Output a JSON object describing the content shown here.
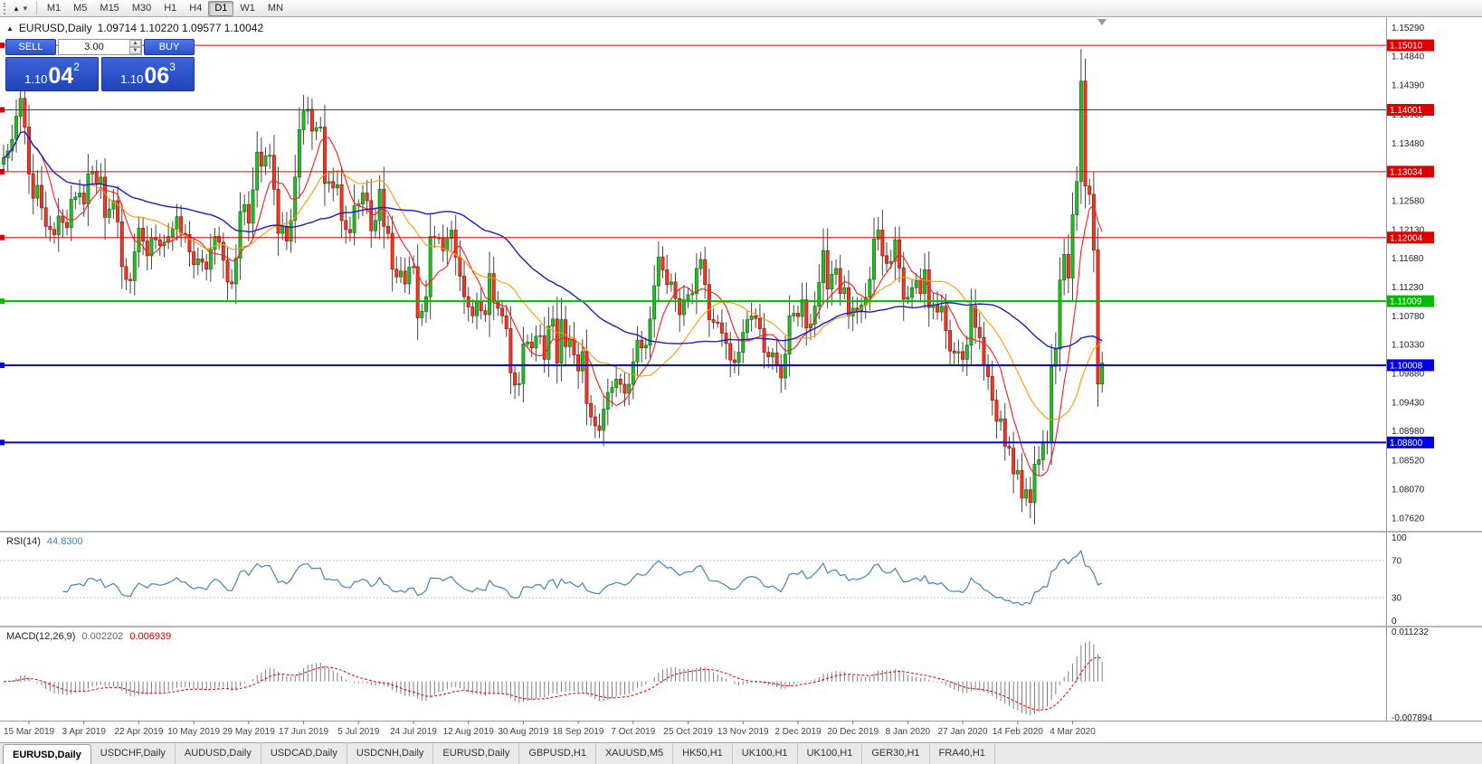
{
  "toolbar": {
    "timeframes": [
      "M1",
      "M5",
      "M15",
      "M30",
      "H1",
      "H4",
      "D1",
      "W1",
      "MN"
    ],
    "active_timeframe": "D1"
  },
  "chart": {
    "symbol": "EURUSD,Daily",
    "ohlc_text": "1.09714 1.10220 1.09577 1.10042"
  },
  "trade_panel": {
    "sell_label": "SELL",
    "buy_label": "BUY",
    "volume": "3.00",
    "sell_price": {
      "prefix": "1.10",
      "big": "04",
      "sup": "2",
      "full": "1.10042"
    },
    "buy_price": {
      "prefix": "1.10",
      "big": "06",
      "sup": "3",
      "full": "1.10063"
    }
  },
  "chart_data": {
    "type": "candlestick",
    "symbol": "EURUSD",
    "period": "Daily",
    "price_range": [
      1.0742,
      1.1545
    ],
    "last_ohlc": {
      "open": 1.09714,
      "high": 1.1022,
      "low": 1.09577,
      "close": 1.10042
    },
    "closes": [
      1.1325,
      1.1336,
      1.1354,
      1.139,
      1.1418,
      1.1373,
      1.13,
      1.1262,
      1.1282,
      1.1247,
      1.1218,
      1.1213,
      1.1205,
      1.1234,
      1.1224,
      1.1216,
      1.126,
      1.1264,
      1.127,
      1.1253,
      1.13,
      1.1304,
      1.1284,
      1.1295,
      1.1232,
      1.1245,
      1.1258,
      1.1225,
      1.1155,
      1.1135,
      1.1133,
      1.1178,
      1.1215,
      1.1195,
      1.1172,
      1.12,
      1.1197,
      1.1188,
      1.1193,
      1.1202,
      1.1214,
      1.1233,
      1.1207,
      1.1205,
      1.1178,
      1.1158,
      1.1167,
      1.1162,
      1.1151,
      1.1182,
      1.1202,
      1.1193,
      1.1165,
      1.1131,
      1.1128,
      1.1168,
      1.1241,
      1.1252,
      1.1223,
      1.1275,
      1.1334,
      1.1312,
      1.1328,
      1.1329,
      1.1276,
      1.1207,
      1.1218,
      1.1195,
      1.1227,
      1.1295,
      1.1369,
      1.1398,
      1.1401,
      1.1367,
      1.1372,
      1.1373,
      1.1285,
      1.1288,
      1.1278,
      1.1283,
      1.1227,
      1.1213,
      1.1208,
      1.125,
      1.1253,
      1.127,
      1.1258,
      1.1211,
      1.1227,
      1.1276,
      1.1218,
      1.1207,
      1.1151,
      1.1139,
      1.1148,
      1.1128,
      1.1154,
      1.1155,
      1.1075,
      1.1085,
      1.1108,
      1.1202,
      1.12,
      1.12,
      1.118,
      1.1199,
      1.1212,
      1.117,
      1.114,
      1.1108,
      1.1092,
      1.1078,
      1.11,
      1.1086,
      1.108,
      1.1144,
      1.11,
      1.109,
      1.1078,
      1.1058,
      1.0989,
      1.097,
      1.0972,
      1.1034,
      1.1037,
      1.1028,
      1.1046,
      1.1047,
      1.101,
      1.1062,
      1.1073,
      1.1004,
      1.1072,
      1.103,
      1.1042,
      1.1017,
      1.0992,
      1.1022,
      1.0941,
      1.092,
      1.0906,
      1.0899,
      1.0932,
      1.0958,
      1.0966,
      1.0979,
      1.0971,
      1.0957,
      1.0971,
      1.1006,
      1.104,
      1.1028,
      1.1032,
      1.1073,
      1.1125,
      1.117,
      1.115,
      1.1127,
      1.1131,
      1.1105,
      1.108,
      1.1103,
      1.1111,
      1.1113,
      1.1152,
      1.1166,
      1.1127,
      1.1072,
      1.1068,
      1.1067,
      1.1051,
      1.1035,
      1.1009,
      1.1005,
      1.1021,
      1.1052,
      1.1072,
      1.1078,
      1.1074,
      1.1058,
      1.1021,
      1.1014,
      1.102,
      1.1001,
      1.0981,
      1.1018,
      1.1078,
      1.1082,
      1.1077,
      1.1103,
      1.1059,
      1.1065,
      1.1093,
      1.113,
      1.118,
      1.112,
      1.1143,
      1.1152,
      1.1113,
      1.1122,
      1.1078,
      1.109,
      1.1086,
      1.1095,
      1.1107,
      1.1135,
      1.1198,
      1.1212,
      1.1172,
      1.116,
      1.1163,
      1.1197,
      1.1153,
      1.1104,
      1.1107,
      1.1122,
      1.1133,
      1.1113,
      1.115,
      1.1091,
      1.1095,
      1.1084,
      1.1093,
      1.1055,
      1.1023,
      1.102,
      1.1022,
      1.101,
      1.1032,
      1.1093,
      1.106,
      1.1044,
      1.1,
      1.0983,
      1.0946,
      1.0913,
      1.0917,
      1.0874,
      1.0871,
      1.0831,
      1.0836,
      1.0793,
      1.0806,
      1.0786,
      1.0846,
      1.0853,
      1.0881,
      1.088,
      1.0999,
      1.1026,
      1.1134,
      1.1174,
      1.1137,
      1.1236,
      1.1288,
      1.1445,
      1.1281,
      1.1268,
      1.1181,
      1.09714,
      1.10042
    ],
    "overrides": {
      "4": {
        "h": 1.1448
      },
      "255": {
        "h": 1.1495
      },
      "259": {
        "l": 1.0936
      },
      "260": {
        "o": 1.09714,
        "h": 1.1022,
        "l": 1.09577,
        "c": 1.10042
      }
    },
    "colors": {
      "bull": "#2db82d",
      "bull_border": "#0c7a0c",
      "bear": "#f03b28",
      "bear_border": "#a01208",
      "wick": "#444444"
    },
    "moving_averages": [
      {
        "period": 8,
        "method": "sma",
        "color": "#ff1a1a"
      },
      {
        "period": 21,
        "method": "sma",
        "color": "#ff9900"
      },
      {
        "period": 50,
        "method": "sma",
        "color": "#1a1ac8"
      }
    ],
    "hlines": [
      {
        "price": 1.1501,
        "label": "1.15010",
        "color": "#dd0000",
        "width": 1
      },
      {
        "price": 1.14001,
        "label": "1.14001",
        "color": "#dd0000",
        "width": 1
      },
      {
        "price": 1.13034,
        "label": "1.13034",
        "color": "#dd0000",
        "width": 1
      },
      {
        "price": 1.12004,
        "label": "1.12004",
        "color": "#dd0000",
        "width": 1
      },
      {
        "price": 1.11009,
        "label": "1.11009",
        "color": "#00bb00",
        "width": 2
      },
      {
        "price": 1.10008,
        "label": "1.10008",
        "color": "#0000e8",
        "width": 2
      },
      {
        "price": 1.088,
        "label": "1.08800",
        "color": "#0000e8",
        "width": 2
      }
    ],
    "y_ticks": [
      "1.15290",
      "1.14840",
      "1.14390",
      "1.13930",
      "1.13480",
      "1.13030",
      "1.12580",
      "1.12130",
      "1.11680",
      "1.11230",
      "1.10780",
      "1.10330",
      "1.09880",
      "1.09430",
      "1.08980",
      "1.08520",
      "1.08070",
      "1.07620"
    ],
    "x_labels": [
      "15 Mar 2019",
      "3 Apr 2019",
      "22 Apr 2019",
      "10 May 2019",
      "29 May 2019",
      "17 Jun 2019",
      "5 Jul 2019",
      "24 Jul 2019",
      "12 Aug 2019",
      "30 Aug 2019",
      "18 Sep 2019",
      "7 Oct 2019",
      "25 Oct 2019",
      "13 Nov 2019",
      "2 Dec 2019",
      "20 Dec 2019",
      "8 Jan 2020",
      "27 Jan 2020",
      "14 Feb 2020",
      "4 Mar 2020"
    ],
    "x_label_every": 13,
    "rsi": {
      "label": "RSI(14)",
      "value": "44.8300",
      "period": 14,
      "levels": [
        70,
        30
      ],
      "scale": [
        0,
        100
      ],
      "axis_labels": [
        "100",
        "70",
        "30",
        "0"
      ],
      "color": "#4682b4"
    },
    "macd": {
      "label": "MACD(12,26,9)",
      "macd_value": "0.002202",
      "signal_value": "0.006939",
      "axis_max": "0.011232",
      "axis_min": "-0.007894",
      "fast": 12,
      "slow": 26,
      "signal": 9,
      "histogram_color": "#7f7f7f",
      "signal_color": "#dd0000"
    }
  },
  "tabs": [
    {
      "label": "EURUSD,Daily",
      "active": true
    },
    {
      "label": "USDCHF,Daily"
    },
    {
      "label": "AUDUSD,Daily"
    },
    {
      "label": "USDCAD,Daily"
    },
    {
      "label": "USDCNH,Daily"
    },
    {
      "label": "EURUSD,Daily"
    },
    {
      "label": "GBPUSD,H1"
    },
    {
      "label": "XAUUSD,M5"
    },
    {
      "label": "HK50,H1"
    },
    {
      "label": "UK100,H1"
    },
    {
      "label": "UK100,H1"
    },
    {
      "label": "GER30,H1"
    },
    {
      "label": "FRA40,H1"
    }
  ]
}
